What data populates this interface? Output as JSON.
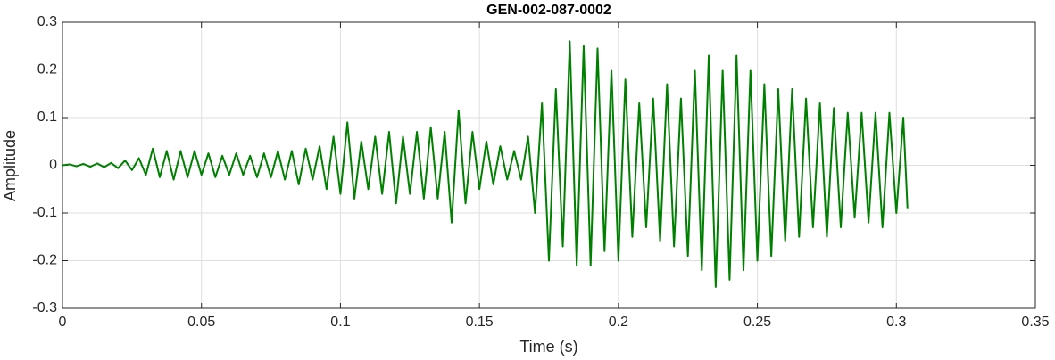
{
  "chart_data": {
    "type": "line",
    "title": "GEN-002-087-0002",
    "x_label": "Time (s)",
    "y_label": "Amplitude",
    "color": "#008000",
    "grid": true,
    "xlim": [
      0,
      0.35
    ],
    "xticks": [
      0,
      0.05,
      0.1,
      0.15,
      0.2,
      0.25,
      0.3,
      0.35
    ],
    "ylim": [
      -0.3,
      0.3
    ],
    "yticks": [
      -0.3,
      -0.2,
      -0.1,
      0,
      0.1,
      0.2,
      0.3
    ],
    "x": [
      0,
      0.0025,
      0.005,
      0.0075,
      0.01,
      0.0125,
      0.015,
      0.0175,
      0.02,
      0.0225,
      0.025,
      0.0275,
      0.03,
      0.0325,
      0.035,
      0.0375,
      0.04,
      0.0425,
      0.045,
      0.0475,
      0.05,
      0.0525,
      0.055,
      0.0575,
      0.06,
      0.0625,
      0.065,
      0.0675,
      0.07,
      0.0725,
      0.075,
      0.0775,
      0.08,
      0.0825,
      0.085,
      0.0875,
      0.09,
      0.0925,
      0.095,
      0.0975,
      0.1,
      0.1025,
      0.105,
      0.1075,
      0.11,
      0.1125,
      0.115,
      0.1175,
      0.12,
      0.1225,
      0.125,
      0.1275,
      0.13,
      0.1325,
      0.135,
      0.1375,
      0.14,
      0.1425,
      0.145,
      0.1475,
      0.15,
      0.1525,
      0.155,
      0.1575,
      0.16,
      0.1625,
      0.165,
      0.1675,
      0.17,
      0.1725,
      0.175,
      0.1775,
      0.18,
      0.1825,
      0.185,
      0.1875,
      0.19,
      0.1925,
      0.195,
      0.1975,
      0.2,
      0.2025,
      0.205,
      0.2075,
      0.21,
      0.2125,
      0.215,
      0.2175,
      0.22,
      0.2225,
      0.225,
      0.2275,
      0.23,
      0.2325,
      0.235,
      0.2375,
      0.24,
      0.2425,
      0.245,
      0.2475,
      0.25,
      0.2525,
      0.255,
      0.2575,
      0.26,
      0.2625,
      0.265,
      0.2675,
      0.27,
      0.2725,
      0.275,
      0.2775,
      0.28,
      0.2825,
      0.285,
      0.2875,
      0.29,
      0.2925,
      0.295,
      0.2975,
      0.3,
      0.3025,
      0.304
    ],
    "values": [
      0,
      0.002,
      -0.002,
      0.003,
      -0.003,
      0.004,
      -0.004,
      0.005,
      -0.006,
      0.01,
      -0.01,
      0.015,
      -0.02,
      0.035,
      -0.025,
      0.03,
      -0.03,
      0.03,
      -0.025,
      0.03,
      -0.02,
      0.025,
      -0.025,
      0.02,
      -0.02,
      0.025,
      -0.02,
      0.02,
      -0.025,
      0.025,
      -0.025,
      0.03,
      -0.03,
      0.03,
      -0.04,
      0.035,
      -0.03,
      0.04,
      -0.05,
      0.06,
      -0.06,
      0.09,
      -0.07,
      0.05,
      -0.05,
      0.06,
      -0.06,
      0.07,
      -0.08,
      0.06,
      -0.06,
      0.07,
      -0.07,
      0.08,
      -0.07,
      0.07,
      -0.12,
      0.115,
      -0.08,
      0.07,
      -0.05,
      0.05,
      -0.04,
      0.04,
      -0.03,
      0.03,
      -0.03,
      0.06,
      -0.1,
      0.13,
      -0.2,
      0.16,
      -0.17,
      0.26,
      -0.21,
      0.25,
      -0.21,
      0.245,
      -0.18,
      0.2,
      -0.2,
      0.18,
      -0.15,
      0.13,
      -0.13,
      0.14,
      -0.16,
      0.17,
      -0.17,
      0.14,
      -0.19,
      0.2,
      -0.22,
      0.23,
      -0.255,
      0.2,
      -0.24,
      0.23,
      -0.22,
      0.2,
      -0.2,
      0.17,
      -0.19,
      0.16,
      -0.16,
      0.16,
      -0.15,
      0.14,
      -0.13,
      0.13,
      -0.15,
      0.12,
      -0.13,
      0.11,
      -0.11,
      0.11,
      -0.12,
      0.11,
      -0.13,
      0.11,
      -0.1,
      0.1,
      -0.09
    ]
  }
}
